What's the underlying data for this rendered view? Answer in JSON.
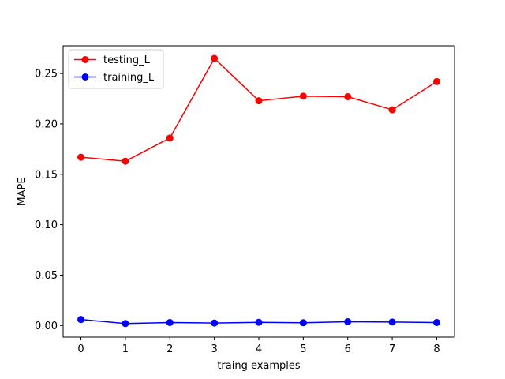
{
  "chart_data": {
    "type": "line",
    "title": "",
    "xlabel": "traing examples",
    "ylabel": "MAPE",
    "x": [
      0,
      1,
      2,
      3,
      4,
      5,
      6,
      7,
      8
    ],
    "xlim": [
      -0.4,
      8.4
    ],
    "ylim": [
      -0.0115,
      0.2775
    ],
    "xticks": [
      0,
      1,
      2,
      3,
      4,
      5,
      6,
      7,
      8
    ],
    "yticks": [
      0.0,
      0.05,
      0.1,
      0.15,
      0.2,
      0.25
    ],
    "ytick_labels": [
      "0.00",
      "0.05",
      "0.10",
      "0.15",
      "0.20",
      "0.25"
    ],
    "grid": false,
    "legend_position": "upper-left",
    "series": [
      {
        "name": "testing_L",
        "color": "#ff0000",
        "marker": "circle",
        "values": [
          0.167,
          0.163,
          0.186,
          0.265,
          0.223,
          0.2275,
          0.227,
          0.214,
          0.242
        ]
      },
      {
        "name": "training_L",
        "color": "#0000ff",
        "marker": "circle",
        "values": [
          0.006,
          0.002,
          0.003,
          0.0025,
          0.0032,
          0.0028,
          0.0038,
          0.0035,
          0.003
        ]
      }
    ]
  }
}
